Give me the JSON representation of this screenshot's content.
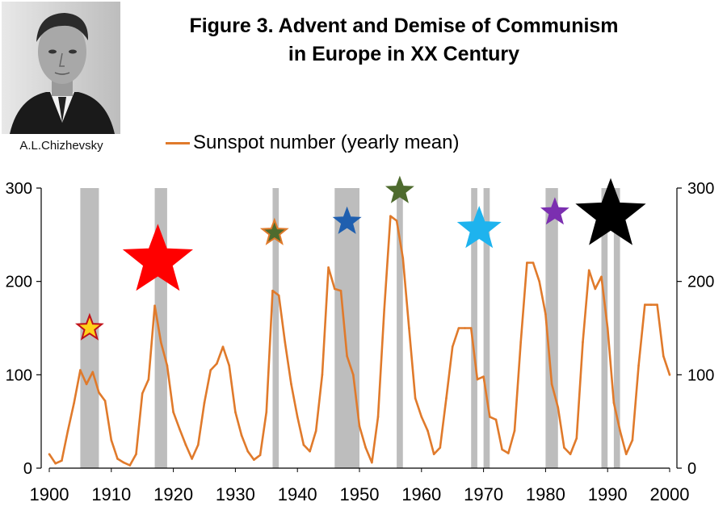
{
  "title_line1": "Figure 3. Advent and Demise of Communism",
  "title_line2": "in Europe in XX Century",
  "photo_caption": "A.L.Chizhevsky",
  "chart_data": {
    "type": "line",
    "title": "Figure 3. Advent and Demise of Communism in Europe in XX Century",
    "series": [
      {
        "name": "Sunspot number (yearly mean)",
        "color": "#E07A2B",
        "x": [
          1900,
          1901,
          1902,
          1903,
          1904,
          1905,
          1906,
          1907,
          1908,
          1909,
          1910,
          1911,
          1912,
          1913,
          1914,
          1915,
          1916,
          1917,
          1918,
          1919,
          1920,
          1921,
          1922,
          1923,
          1924,
          1925,
          1926,
          1927,
          1928,
          1929,
          1930,
          1931,
          1932,
          1933,
          1934,
          1935,
          1936,
          1937,
          1938,
          1939,
          1940,
          1941,
          1942,
          1943,
          1944,
          1945,
          1946,
          1947,
          1948,
          1949,
          1950,
          1951,
          1952,
          1953,
          1954,
          1955,
          1956,
          1957,
          1958,
          1959,
          1960,
          1961,
          1962,
          1963,
          1964,
          1965,
          1966,
          1967,
          1968,
          1969,
          1970,
          1971,
          1972,
          1973,
          1974,
          1975,
          1976,
          1977,
          1978,
          1979,
          1980,
          1981,
          1982,
          1983,
          1984,
          1985,
          1986,
          1987,
          1988,
          1989,
          1990,
          1991,
          1992,
          1993,
          1994,
          1995,
          1996,
          1997,
          1998,
          1999,
          2000
        ],
        "values": [
          15,
          5,
          8,
          40,
          70,
          105,
          90,
          103,
          81,
          72,
          30,
          10,
          6,
          3,
          15,
          80,
          95,
          174,
          135,
          110,
          60,
          42,
          25,
          10,
          25,
          70,
          105,
          112,
          130,
          110,
          60,
          35,
          18,
          9,
          14,
          60,
          190,
          185,
          135,
          90,
          55,
          25,
          18,
          40,
          100,
          215,
          192,
          190,
          120,
          100,
          45,
          22,
          6,
          55,
          170,
          270,
          265,
          225,
          150,
          75,
          55,
          40,
          15,
          22,
          75,
          130,
          150,
          150,
          150,
          95,
          98,
          55,
          52,
          20,
          16,
          40,
          135,
          220,
          220,
          200,
          165,
          90,
          65,
          22,
          15,
          32,
          135,
          212,
          192,
          205,
          150,
          70,
          40,
          15,
          30,
          110,
          175,
          175,
          175,
          120,
          100
        ],
        "values_note": "estimated from gridlines"
      }
    ],
    "xlim": [
      1900,
      2000
    ],
    "ylim": [
      0,
      300
    ],
    "x_ticks": [
      "1900",
      "1910",
      "1920",
      "1930",
      "1940",
      "1950",
      "1960",
      "1970",
      "1980",
      "1990",
      "2000"
    ],
    "y_ticks_left": [
      "0",
      "100",
      "200",
      "300"
    ],
    "y_ticks_right": [
      "0",
      "100",
      "200",
      "300"
    ],
    "shaded_periods": [
      {
        "start": 1905,
        "end": 1908
      },
      {
        "start": 1917,
        "end": 1919
      },
      {
        "start": 1936,
        "end": 1937
      },
      {
        "start": 1946,
        "end": 1950
      },
      {
        "start": 1956,
        "end": 1957
      },
      {
        "start": 1968,
        "end": 1969
      },
      {
        "start": 1970,
        "end": 1971
      },
      {
        "start": 1980,
        "end": 1982
      },
      {
        "start": 1989,
        "end": 1990
      },
      {
        "start": 1991,
        "end": 1992
      }
    ],
    "stars": [
      {
        "year": 1906.5,
        "value": 150,
        "color": "#FFD21A",
        "outline": "#C0101A",
        "size": "small"
      },
      {
        "year": 1917.5,
        "value": 222,
        "color": "#FF0000",
        "outline": "#FF0000",
        "size": "large"
      },
      {
        "year": 1936.3,
        "value": 252,
        "color": "#4E6B2E",
        "outline": "#E07A2B",
        "size": "small"
      },
      {
        "year": 1948,
        "value": 264,
        "color": "#1F5FAF",
        "outline": "#1F5FAF",
        "size": "small"
      },
      {
        "year": 1956.5,
        "value": 297,
        "color": "#4E6B2E",
        "outline": "#4E6B2E",
        "size": "small"
      },
      {
        "year": 1969.3,
        "value": 256,
        "color": "#1EB3EE",
        "outline": "#1EB3EE",
        "size": "medium"
      },
      {
        "year": 1981.5,
        "value": 274,
        "color": "#7B2FB0",
        "outline": "#7B2FB0",
        "size": "small"
      },
      {
        "year": 1990.5,
        "value": 271,
        "color": "#000000",
        "outline": "#000000",
        "size": "large"
      }
    ]
  }
}
